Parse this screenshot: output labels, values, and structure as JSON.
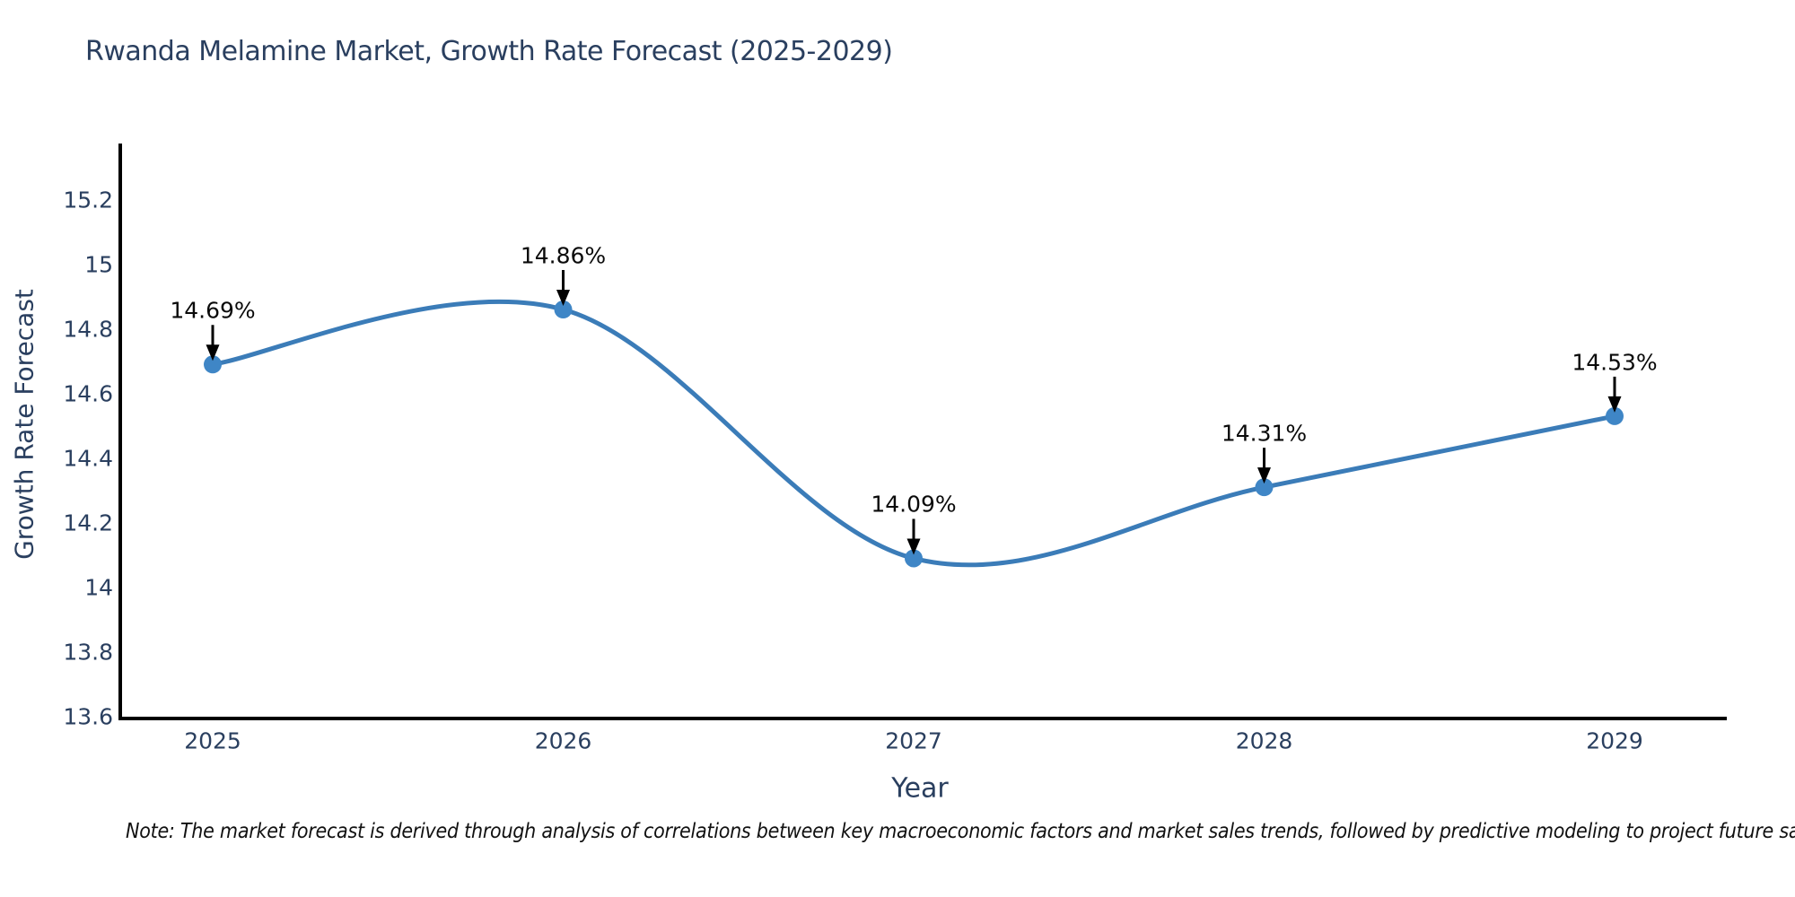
{
  "chart_data": {
    "type": "line",
    "line_shape": "spline",
    "title": "Rwanda Melamine Market, Growth Rate Forecast (2025-2029)",
    "xlabel": "Year",
    "ylabel": "Growth Rate Forecast",
    "categories": [
      "2025",
      "2026",
      "2027",
      "2028",
      "2029"
    ],
    "series": [
      {
        "name": "Growth Rate Forecast",
        "values": [
          14.69,
          14.86,
          14.09,
          14.31,
          14.53
        ]
      }
    ],
    "point_labels": [
      "14.69%",
      "14.86%",
      "14.09%",
      "14.31%",
      "14.53%"
    ],
    "ytick_values": [
      13.6,
      13.8,
      14.0,
      14.2,
      14.4,
      14.6,
      14.8,
      15.0,
      15.2
    ],
    "ytick_labels": [
      "13.6",
      "13.8",
      "14",
      "14.2",
      "14.4",
      "14.6",
      "14.8",
      "15",
      "15.2"
    ],
    "ylim": [
      13.6,
      15.37
    ],
    "grid": false,
    "legend": "none",
    "annotation_style": "value label above point with black down arrow",
    "colors": {
      "line": "#3b7cb8",
      "marker": "#3f86c6",
      "axis": "#000000",
      "text": "#2a3f5f",
      "annotation_text": "#0a0a0a",
      "arrow": "#000000",
      "background": "#ffffff"
    },
    "note": "Note: The market forecast is derived through analysis of correlations between key macroeconomic factors and market sales trends, followed by predictive modeling to project future sal"
  }
}
